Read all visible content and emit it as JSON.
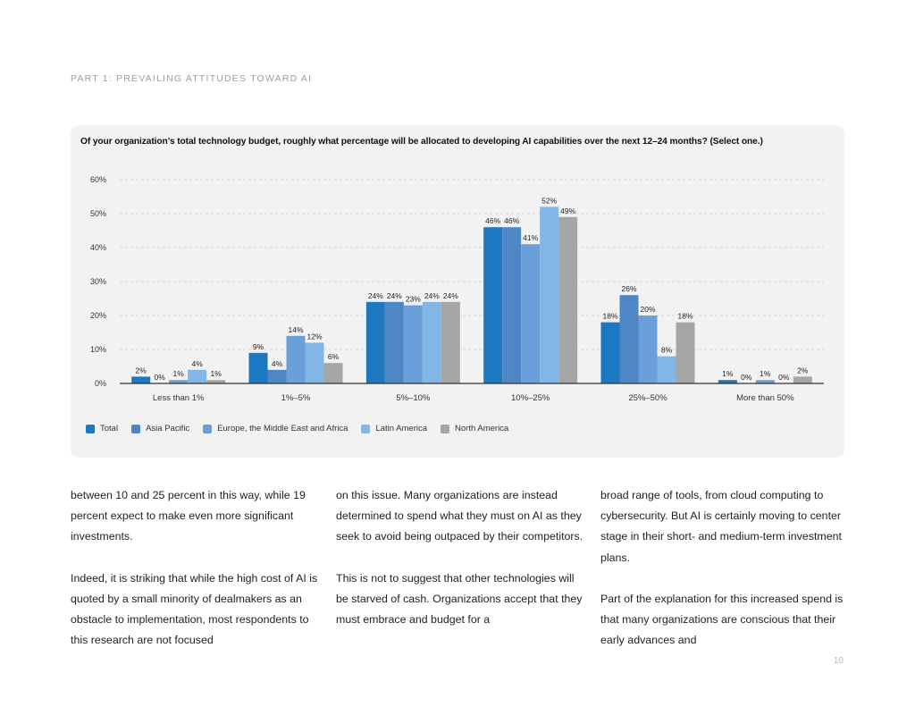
{
  "section_label": "PART 1: PREVAILING ATTITUDES TOWARD AI",
  "chart_data": {
    "type": "bar",
    "title": "Of your organization’s total technology budget, roughly what percentage will be allocated to developing AI capabilities over the next 12–24 months? (Select one.)",
    "xlabel": "",
    "ylabel": "",
    "ylim": [
      0,
      60
    ],
    "yticks": [
      0,
      10,
      20,
      30,
      40,
      50,
      60
    ],
    "ytick_labels": [
      "0%",
      "10%",
      "20%",
      "30%",
      "40%",
      "50%",
      "60%"
    ],
    "grid": true,
    "legend_position": "bottom-left",
    "categories": [
      "Less than 1%",
      "1%–5%",
      "5%–10%",
      "10%–25%",
      "25%–50%",
      "More than 50%"
    ],
    "series": [
      {
        "name": "Total",
        "color": "#1c78c0",
        "values": [
          2,
          9,
          24,
          46,
          18,
          1
        ]
      },
      {
        "name": "Asia Pacific",
        "color": "#4f86c6",
        "values": [
          0,
          4,
          24,
          46,
          26,
          0
        ]
      },
      {
        "name": "Europe, the Middle East and Africa",
        "color": "#6a9fda",
        "values": [
          1,
          14,
          23,
          41,
          20,
          1
        ]
      },
      {
        "name": "Latin America",
        "color": "#82b6e6",
        "values": [
          4,
          12,
          24,
          52,
          8,
          0
        ]
      },
      {
        "name": "North America",
        "color": "#a6a6a6",
        "values": [
          1,
          6,
          24,
          49,
          18,
          2
        ]
      }
    ]
  },
  "body": {
    "col1_p1": "between 10 and 25 percent in this way, while 19 percent expect to make even more significant investments.",
    "col1_p2": "Indeed, it is striking that while the high cost of AI is quoted by a small minority of dealmakers as an obstacle to implementation, most respondents to this research are not focused",
    "col2_p1": "on this issue. Many organizations are instead determined to spend what they must on AI as they seek to avoid being outpaced by their competitors.",
    "col2_p2": "This is not to suggest that other technologies will be starved of cash. Organizations accept that they must embrace and budget for a",
    "col3_p1": "broad range of tools, from cloud computing to cybersecurity. But AI is certainly moving to center stage in their short- and medium-term investment plans.",
    "col3_p2": "Part of the explanation for this increased spend is that many organizations are conscious that their early advances and"
  },
  "page_number": "10"
}
